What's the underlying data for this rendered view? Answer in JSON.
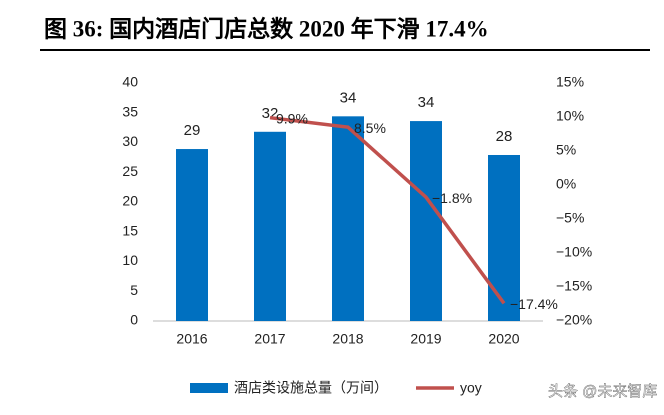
{
  "chart_data": {
    "type": "bar",
    "title": "图 36:  国内酒店门店总数 2020 年下滑 17.4%",
    "categories": [
      "2016",
      "2017",
      "2018",
      "2019",
      "2020"
    ],
    "series": [
      {
        "name": "酒店类设施总量（万间）",
        "type": "bar",
        "color": "#0070c0",
        "values": [
          28.9,
          31.8,
          34.4,
          33.6,
          27.9
        ],
        "value_labels": [
          "29",
          "32",
          "34",
          "34",
          "28"
        ]
      },
      {
        "name": "yoy",
        "type": "line",
        "axis": "y2",
        "color": "#c0504d",
        "values": [
          null,
          9.9,
          8.5,
          -1.8,
          -17.4
        ],
        "value_labels": [
          null,
          "9.9%",
          "8.5%",
          "−1.8%",
          "−17.4%"
        ]
      }
    ],
    "ylim": [
      0,
      40
    ],
    "yticks": [
      0,
      5,
      10,
      15,
      20,
      25,
      30,
      35,
      40
    ],
    "y2lim": [
      -20,
      15
    ],
    "y2ticks": [
      {
        "value": -20,
        "label": "−20%"
      },
      {
        "value": -15,
        "label": "−15%"
      },
      {
        "value": -10,
        "label": "−10%"
      },
      {
        "value": -5,
        "label": "−5%"
      },
      {
        "value": 0,
        "label": "0%"
      },
      {
        "value": 5,
        "label": "5%"
      },
      {
        "value": 10,
        "label": "10%"
      },
      {
        "value": 15,
        "label": "15%"
      }
    ],
    "grid": false,
    "legend": "bottom",
    "watermark": "头条 @未来智库"
  }
}
